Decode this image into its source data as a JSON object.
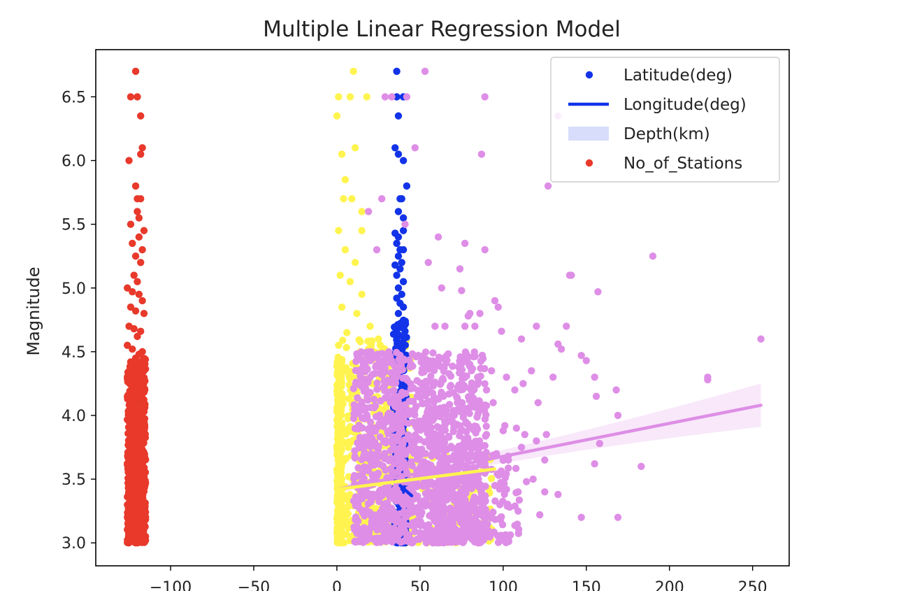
{
  "chart_data": {
    "type": "scatter",
    "title": "Multiple Linear Regression Model",
    "xlabel": "",
    "ylabel": "Magnitude",
    "xlim": [
      -145,
      272
    ],
    "ylim": [
      2.82,
      6.87
    ],
    "xticks": [
      -100,
      -50,
      0,
      50,
      100,
      150,
      200,
      250
    ],
    "xtick_labels": [
      "−100",
      "−50",
      "0",
      "50",
      "100",
      "150",
      "200",
      "250"
    ],
    "yticks": [
      3.0,
      3.5,
      4.0,
      4.5,
      5.0,
      5.5,
      6.0,
      6.5
    ],
    "ytick_labels": [
      "3.0",
      "3.5",
      "4.0",
      "4.5",
      "5.0",
      "5.5",
      "6.0",
      "6.5"
    ],
    "grid": false,
    "legend_position": "top-right",
    "legend": [
      {
        "label": "Latitude(deg)",
        "kind": "point"
      },
      {
        "label": "Longitude(deg)",
        "kind": "line"
      },
      {
        "label": "Depth(km)",
        "kind": "band"
      },
      {
        "label": "No_of_Stations",
        "kind": "point"
      }
    ],
    "series": [
      {
        "name": "No_of_Stations",
        "color": "#e8392b",
        "kind": "scatter",
        "points": [
          [
            -121,
            6.7
          ],
          [
            -124,
            6.5
          ],
          [
            -120,
            6.5
          ],
          [
            -118,
            6.35
          ],
          [
            -117,
            6.1
          ],
          [
            -118,
            6.05
          ],
          [
            -125,
            6.0
          ],
          [
            -121,
            5.8
          ],
          [
            -120,
            5.7
          ],
          [
            -118,
            5.7
          ],
          [
            -120,
            5.6
          ],
          [
            -119,
            5.55
          ],
          [
            -116,
            5.45
          ],
          [
            -124,
            5.5
          ],
          [
            -119,
            5.4
          ],
          [
            -117,
            5.3
          ],
          [
            -123,
            5.35
          ],
          [
            -121,
            5.25
          ],
          [
            -118,
            5.2
          ],
          [
            -122,
            5.1
          ],
          [
            -120,
            5.05
          ],
          [
            -126,
            5.0
          ],
          [
            -123,
            4.97
          ],
          [
            -119,
            4.95
          ],
          [
            -117,
            4.9
          ],
          [
            -124,
            4.85
          ],
          [
            -121,
            4.82
          ],
          [
            -116,
            4.8
          ],
          [
            -125,
            4.7
          ],
          [
            -122,
            4.68
          ],
          [
            -118,
            4.66
          ],
          [
            -120,
            4.62
          ],
          [
            -126,
            4.55
          ],
          [
            -123,
            4.52
          ],
          [
            -117,
            4.5
          ],
          [
            -119,
            4.48
          ],
          [
            -121,
            4.45
          ],
          [
            -124,
            4.42
          ]
        ],
        "dense_bands": [
          {
            "x_range": [
              -126,
              -115
            ],
            "y_range": [
              3.0,
              4.45
            ],
            "count": 640
          }
        ]
      },
      {
        "name": "",
        "color": "#fff44f",
        "kind": "scatter",
        "points": [
          [
            10,
            6.7
          ],
          [
            1,
            6.5
          ],
          [
            8,
            6.5
          ],
          [
            18,
            6.5
          ],
          [
            0,
            6.35
          ],
          [
            3,
            6.05
          ],
          [
            11,
            6.1
          ],
          [
            5,
            5.85
          ],
          [
            4,
            5.7
          ],
          [
            9,
            5.7
          ],
          [
            15,
            5.6
          ],
          [
            1,
            5.45
          ],
          [
            15,
            5.45
          ],
          [
            5,
            5.3
          ],
          [
            11,
            5.2
          ],
          [
            2,
            5.1
          ],
          [
            8,
            5.05
          ],
          [
            15,
            4.95
          ],
          [
            3,
            4.85
          ],
          [
            12,
            4.8
          ],
          [
            20,
            4.7
          ],
          [
            6,
            4.65
          ],
          [
            1,
            4.55
          ],
          [
            14,
            4.5
          ],
          [
            25,
            4.6
          ]
        ],
        "dense_bands": [
          {
            "x_range": [
              0,
              3
            ],
            "y_range": [
              3.0,
              4.45
            ],
            "count": 260
          },
          {
            "x_range": [
              0,
              45
            ],
            "y_range": [
              3.0,
              4.6
            ],
            "count": 420
          },
          {
            "x_range": [
              20,
              95
            ],
            "y_range": [
              3.0,
              3.7
            ],
            "count": 160
          }
        ]
      },
      {
        "name": "Latitude(deg)",
        "color": "#1233e8",
        "kind": "scatter",
        "points": [
          [
            36,
            6.7
          ],
          [
            36,
            6.5
          ],
          [
            40,
            6.5
          ],
          [
            37,
            6.35
          ],
          [
            35,
            6.1
          ],
          [
            37,
            6.05
          ],
          [
            40,
            6.0
          ],
          [
            42,
            5.8
          ],
          [
            38,
            5.7
          ],
          [
            39,
            5.7
          ],
          [
            37,
            5.6
          ],
          [
            40,
            5.55
          ],
          [
            40,
            5.45
          ],
          [
            35,
            5.43
          ],
          [
            37,
            5.4
          ],
          [
            36,
            5.35
          ],
          [
            38,
            5.3
          ],
          [
            40,
            5.3
          ],
          [
            37,
            5.25
          ],
          [
            39,
            5.2
          ],
          [
            35,
            5.18
          ],
          [
            38,
            5.15
          ],
          [
            36,
            5.1
          ],
          [
            40,
            5.05
          ],
          [
            37,
            5.0
          ],
          [
            39,
            4.95
          ],
          [
            36,
            4.92
          ],
          [
            38,
            4.88
          ],
          [
            40,
            4.85
          ],
          [
            37,
            4.8
          ]
        ],
        "dense_bands": [
          {
            "x_range": [
              34,
              42
            ],
            "y_range": [
              3.0,
              4.75
            ],
            "count": 260
          }
        ]
      },
      {
        "name": "",
        "color": "#de8ee6",
        "kind": "scatter",
        "points": [
          [
            53,
            6.7
          ],
          [
            29,
            6.5
          ],
          [
            42,
            6.5
          ],
          [
            89,
            6.5
          ],
          [
            33,
            6.5
          ],
          [
            47,
            6.1
          ],
          [
            87,
            6.05
          ],
          [
            127,
            5.8
          ],
          [
            133,
            6.35
          ],
          [
            27,
            5.7
          ],
          [
            19,
            5.6
          ],
          [
            41,
            5.5
          ],
          [
            61,
            5.4
          ],
          [
            77,
            5.35
          ],
          [
            89,
            5.3
          ],
          [
            190,
            5.25
          ],
          [
            24,
            5.3
          ],
          [
            55,
            5.2
          ],
          [
            74,
            5.15
          ],
          [
            140,
            5.1
          ],
          [
            141,
            5.1
          ],
          [
            63,
            5.0
          ],
          [
            75,
            4.98
          ],
          [
            157,
            4.97
          ],
          [
            95,
            4.9
          ],
          [
            97,
            4.85
          ],
          [
            86,
            4.8
          ],
          [
            80,
            4.8
          ],
          [
            79,
            4.78
          ],
          [
            83,
            4.7
          ],
          [
            120,
            4.7
          ],
          [
            138,
            4.7
          ],
          [
            59,
            4.7
          ],
          [
            65,
            4.7
          ],
          [
            77,
            4.7
          ],
          [
            99,
            4.66
          ],
          [
            111,
            4.6
          ],
          [
            133,
            4.56
          ],
          [
            135,
            4.52
          ],
          [
            147,
            4.47
          ],
          [
            150,
            4.43
          ],
          [
            255,
            4.6
          ],
          [
            80,
            4.4
          ],
          [
            93,
            4.35
          ],
          [
            117,
            4.35
          ],
          [
            102,
            4.3
          ],
          [
            130,
            4.3
          ],
          [
            155,
            4.3
          ],
          [
            223,
            4.3
          ],
          [
            223,
            4.28
          ],
          [
            75,
            4.25
          ],
          [
            112,
            4.25
          ],
          [
            90,
            4.2
          ],
          [
            107,
            4.2
          ],
          [
            168,
            4.2
          ],
          [
            156,
            4.15
          ],
          [
            94,
            4.1
          ],
          [
            121,
            4.1
          ],
          [
            88,
            4.05
          ],
          [
            169,
            4.0
          ],
          [
            101,
            3.92
          ],
          [
            108,
            3.9
          ],
          [
            100,
            3.88
          ],
          [
            113,
            3.85
          ],
          [
            120,
            3.8
          ],
          [
            126,
            3.85
          ],
          [
            111,
            3.75
          ],
          [
            158,
            3.78
          ],
          [
            96,
            3.7
          ],
          [
            103,
            3.68
          ],
          [
            125,
            3.65
          ],
          [
            155,
            3.62
          ],
          [
            183,
            3.6
          ],
          [
            99,
            3.55
          ],
          [
            118,
            3.5
          ],
          [
            114,
            3.48
          ],
          [
            95,
            3.45
          ],
          [
            102,
            3.42
          ],
          [
            109,
            3.4
          ],
          [
            125,
            3.4
          ],
          [
            133,
            3.38
          ],
          [
            98,
            3.3
          ],
          [
            104,
            3.28
          ],
          [
            109,
            3.25
          ],
          [
            122,
            3.22
          ],
          [
            147,
            3.2
          ],
          [
            169,
            3.2
          ]
        ],
        "dense_bands": [
          {
            "x_range": [
              10,
              90
            ],
            "y_range": [
              3.0,
              4.5
            ],
            "count": 1300
          },
          {
            "x_range": [
              60,
              110
            ],
            "y_range": [
              3.0,
              3.7
            ],
            "count": 160
          }
        ]
      }
    ],
    "regression_lines": [
      {
        "series_color": "#de8ee6",
        "x": [
          0,
          255
        ],
        "y": [
          3.42,
          4.08
        ],
        "ci_at_start": 0.03,
        "ci_at_end": 0.17
      },
      {
        "series_color": "#fff44f",
        "x": [
          0,
          95
        ],
        "y": [
          3.42,
          3.58
        ]
      },
      {
        "series_color": "#1233e8",
        "x": [
          38,
          45
        ],
        "y": [
          3.45,
          3.37
        ]
      }
    ]
  }
}
